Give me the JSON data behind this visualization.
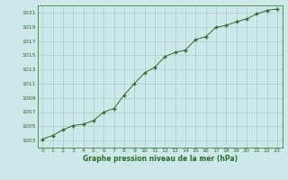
{
  "x": [
    0,
    1,
    2,
    3,
    4,
    5,
    6,
    7,
    8,
    9,
    10,
    11,
    12,
    13,
    14,
    15,
    16,
    17,
    18,
    19,
    20,
    21,
    22,
    23
  ],
  "y": [
    1003.2,
    1003.7,
    1004.5,
    1005.1,
    1005.3,
    1005.8,
    1007.0,
    1007.5,
    1009.4,
    1011.0,
    1012.5,
    1013.3,
    1014.8,
    1015.4,
    1015.7,
    1017.2,
    1017.6,
    1018.9,
    1019.2,
    1019.7,
    1020.1,
    1020.8,
    1021.3,
    1021.5
  ],
  "xlim": [
    -0.5,
    23.5
  ],
  "ylim": [
    1002,
    1022
  ],
  "yticks": [
    1003,
    1005,
    1007,
    1009,
    1011,
    1013,
    1015,
    1017,
    1019,
    1021
  ],
  "xticks": [
    0,
    1,
    2,
    3,
    4,
    5,
    6,
    7,
    8,
    9,
    10,
    11,
    12,
    13,
    14,
    15,
    16,
    17,
    18,
    19,
    20,
    21,
    22,
    23
  ],
  "xlabel": "Graphe pression niveau de la mer (hPa)",
  "line_color": "#2d6a2d",
  "marker": "+",
  "background_color": "#cce8e8",
  "grid_color": "#aacccc",
  "tick_color": "#2d6a2d",
  "label_color": "#2d6a2d",
  "spine_color": "#2d6a2d"
}
